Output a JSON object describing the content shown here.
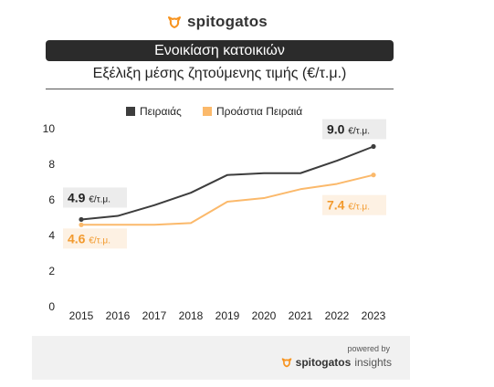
{
  "brand": {
    "name": "spitogatos",
    "icon": "spitogatos-logo-icon",
    "accent": "#f7931e"
  },
  "title": "Ενοικίαση κατοικιών",
  "subtitle": "Εξέλιξη μέσης ζητούμενης τιμής (€/τ.μ.)",
  "footer": {
    "powered_by": "powered by",
    "brand_name": "spitogatos",
    "brand_sub": "insights"
  },
  "chart_data": {
    "type": "line",
    "x": [
      2015,
      2016,
      2017,
      2018,
      2019,
      2020,
      2021,
      2022,
      2023
    ],
    "ylim": [
      0,
      10
    ],
    "yticks": [
      0,
      2,
      4,
      6,
      8,
      10
    ],
    "grid": false,
    "legend_position": "top",
    "series": [
      {
        "name": "Πειραιάς",
        "color": "#3d3d3d",
        "values": [
          4.9,
          5.1,
          5.7,
          6.4,
          7.4,
          7.5,
          7.5,
          8.2,
          9.0
        ]
      },
      {
        "name": "Προάστια Πειραιά",
        "color": "#fbb96b",
        "values": [
          4.6,
          4.6,
          4.6,
          4.7,
          5.9,
          6.1,
          6.6,
          6.9,
          7.4
        ]
      }
    ],
    "annotations": [
      {
        "series": 0,
        "point": "first",
        "value": "4.9",
        "unit": "€/τ.μ."
      },
      {
        "series": 0,
        "point": "last",
        "value": "9.0",
        "unit": "€/τ.μ."
      },
      {
        "series": 1,
        "point": "first",
        "value": "4.6",
        "unit": "€/τ.μ."
      },
      {
        "series": 1,
        "point": "last",
        "value": "7.4",
        "unit": "€/τ.μ."
      }
    ]
  }
}
